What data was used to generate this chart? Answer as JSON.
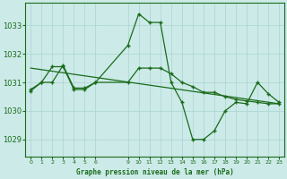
{
  "background_color": "#cceae8",
  "grid_color": "#aad4d2",
  "line_color": "#1a6b1a",
  "title": "Graphe pression niveau de la mer (hPa)",
  "xlim": [
    -0.5,
    23.5
  ],
  "ylim": [
    1028.4,
    1033.8
  ],
  "yticks": [
    1029,
    1030,
    1031,
    1032,
    1033
  ],
  "xtick_positions": [
    0,
    1,
    2,
    3,
    4,
    5,
    6,
    9,
    10,
    11,
    12,
    13,
    14,
    15,
    16,
    17,
    18,
    19,
    20,
    21,
    22,
    23
  ],
  "xtick_labels": [
    "0",
    "1",
    "2",
    "3",
    "4",
    "5",
    "6",
    "9",
    "10",
    "11",
    "12",
    "13",
    "14",
    "15",
    "16",
    "17",
    "18",
    "19",
    "20",
    "21",
    "22",
    "23"
  ],
  "series1_x": [
    0,
    1,
    2,
    3,
    4,
    5,
    6,
    9,
    10,
    11,
    12,
    13,
    14,
    15,
    16,
    17,
    18,
    19,
    20,
    21,
    22,
    23
  ],
  "series1_y": [
    1030.7,
    1031.0,
    1031.0,
    1031.6,
    1030.8,
    1030.8,
    1031.0,
    1032.3,
    1033.4,
    1033.1,
    1033.1,
    1031.0,
    1030.3,
    1029.0,
    1029.0,
    1029.3,
    1030.0,
    1030.3,
    1030.25,
    1031.0,
    1030.6,
    1030.3
  ],
  "series2_x": [
    0,
    1,
    2,
    3,
    4,
    5,
    6,
    9,
    10,
    11,
    12,
    13,
    14,
    15,
    16,
    17,
    18,
    19,
    20,
    21,
    22,
    23
  ],
  "series2_y": [
    1030.75,
    1031.0,
    1031.55,
    1031.55,
    1030.75,
    1030.75,
    1031.0,
    1031.0,
    1031.5,
    1031.5,
    1031.5,
    1031.3,
    1031.0,
    1030.85,
    1030.65,
    1030.65,
    1030.5,
    1030.4,
    1030.35,
    1030.3,
    1030.25,
    1030.25
  ],
  "series3_x": [
    0,
    23
  ],
  "series3_y": [
    1031.5,
    1030.25
  ]
}
